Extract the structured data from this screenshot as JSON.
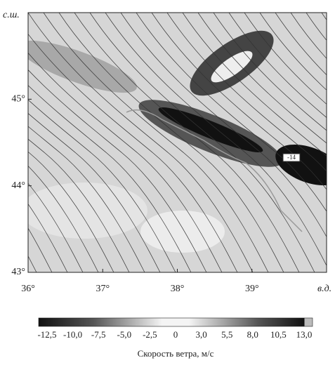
{
  "map": {
    "y_label": "с.ш.",
    "x_label": "в.д.",
    "xlim": [
      36,
      40
    ],
    "ylim": [
      43,
      46
    ],
    "xticks": [
      {
        "value": 36,
        "label": "36°"
      },
      {
        "value": 37,
        "label": "37°"
      },
      {
        "value": 38,
        "label": "38°"
      },
      {
        "value": 39,
        "label": "39°"
      }
    ],
    "yticks": [
      {
        "value": 43,
        "label": "43°"
      },
      {
        "value": 44,
        "label": "44°"
      },
      {
        "value": 45,
        "label": "45°"
      }
    ],
    "contour_labels": [
      "-14"
    ]
  },
  "colorbar": {
    "ticks": [
      {
        "value": -12.5,
        "label": "-12,5"
      },
      {
        "value": -10,
        "label": "-10,0"
      },
      {
        "value": -7.5,
        "label": "-7,5"
      },
      {
        "value": -5,
        "label": "-5,0"
      },
      {
        "value": -2.5,
        "label": "-2,5"
      },
      0,
      {
        "value": 3,
        "label": "3,0"
      },
      {
        "value": 5.5,
        "label": "5,5"
      },
      {
        "value": 8,
        "label": "8,0"
      },
      {
        "value": 10.5,
        "label": "10,5"
      },
      {
        "value": 13,
        "label": "13,0"
      }
    ],
    "label": "Скорость ветра, м/с"
  }
}
